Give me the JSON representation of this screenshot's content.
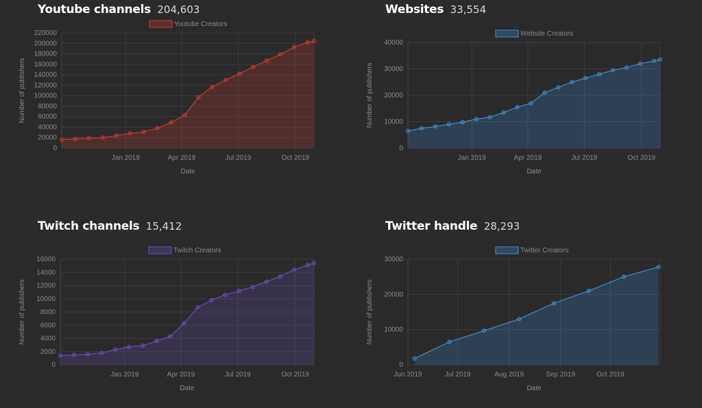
{
  "panels": [
    {
      "title": "Youtube channels",
      "count": "204,603",
      "chart_data": {
        "type": "area",
        "legend": "Youtube Creators",
        "legend_position": "top-center",
        "xlabel": "Date",
        "ylabel": "Number of publishers",
        "ylim": [
          0,
          220000
        ],
        "yticks": [
          0,
          20000,
          40000,
          60000,
          80000,
          100000,
          120000,
          140000,
          160000,
          180000,
          200000,
          220000
        ],
        "xlim": [
          "2018-09-20",
          "2019-10-31"
        ],
        "xticks": [
          {
            "date": "2019-01-01",
            "label": "Jan 2019"
          },
          {
            "date": "2019-04-01",
            "label": "Apr 2019"
          },
          {
            "date": "2019-07-01",
            "label": "Jul 2019"
          },
          {
            "date": "2019-10-01",
            "label": "Oct 2019"
          }
        ],
        "grid": true,
        "color": "#d0392b",
        "series": [
          {
            "x": [
              "2018-09-20",
              "2018-10-12",
              "2018-11-03",
              "2018-11-25",
              "2018-12-17",
              "2019-01-08",
              "2019-01-30",
              "2019-02-21",
              "2019-03-15",
              "2019-04-06",
              "2019-04-28",
              "2019-05-20",
              "2019-06-11",
              "2019-07-03",
              "2019-07-25",
              "2019-08-16",
              "2019-09-07",
              "2019-09-29",
              "2019-10-21",
              "2019-10-31"
            ],
            "y": [
              16000,
              17500,
              19000,
              20000,
              24000,
              28000,
              31000,
              38000,
              49000,
              63000,
              97000,
              117000,
              130000,
              142000,
              155000,
              167000,
              179000,
              193000,
              202000,
              204603
            ]
          }
        ]
      }
    },
    {
      "title": "Websites",
      "count": "33,554",
      "chart_data": {
        "type": "area",
        "legend": "Website Creators",
        "legend_position": "top-center",
        "xlabel": "Date",
        "ylabel": "Number of publishers",
        "ylim": [
          0,
          40000
        ],
        "yticks": [
          0,
          10000,
          20000,
          30000,
          40000
        ],
        "xlim": [
          "2018-09-20",
          "2019-10-31"
        ],
        "xticks": [
          {
            "date": "2019-01-01",
            "label": "Jan 2019"
          },
          {
            "date": "2019-04-01",
            "label": "Apr 2019"
          },
          {
            "date": "2019-07-01",
            "label": "Jul 2019"
          },
          {
            "date": "2019-10-01",
            "label": "Oct 2019"
          }
        ],
        "grid": true,
        "color": "#3a8fd4",
        "series": [
          {
            "x": [
              "2018-09-20",
              "2018-10-12",
              "2018-11-03",
              "2018-11-25",
              "2018-12-17",
              "2019-01-08",
              "2019-01-30",
              "2019-02-21",
              "2019-03-15",
              "2019-04-06",
              "2019-04-28",
              "2019-05-20",
              "2019-06-11",
              "2019-07-03",
              "2019-07-25",
              "2019-08-16",
              "2019-09-07",
              "2019-09-29",
              "2019-10-21",
              "2019-10-31"
            ],
            "y": [
              6500,
              7500,
              8200,
              9000,
              9800,
              11000,
              11700,
              13500,
              15500,
              17000,
              21000,
              23000,
              25000,
              26500,
              28000,
              29500,
              30500,
              32000,
              33000,
              33554
            ]
          }
        ]
      }
    },
    {
      "title": "Twitch channels",
      "count": "15,412",
      "chart_data": {
        "type": "area",
        "legend": "Twitch Creators",
        "legend_position": "top-center",
        "xlabel": "Date",
        "ylabel": "Number of publishers",
        "ylim": [
          0,
          16000
        ],
        "yticks": [
          0,
          2000,
          4000,
          6000,
          8000,
          10000,
          12000,
          14000,
          16000
        ],
        "xlim": [
          "2018-09-20",
          "2019-10-31"
        ],
        "xticks": [
          {
            "date": "2019-01-01",
            "label": "Jan 2019"
          },
          {
            "date": "2019-04-01",
            "label": "Apr 2019"
          },
          {
            "date": "2019-07-01",
            "label": "Jul 2019"
          },
          {
            "date": "2019-10-01",
            "label": "Oct 2019"
          }
        ],
        "grid": true,
        "color": "#6a4fb8",
        "series": [
          {
            "x": [
              "2018-09-20",
              "2018-10-12",
              "2018-11-03",
              "2018-11-25",
              "2018-12-17",
              "2019-01-08",
              "2019-01-30",
              "2019-02-21",
              "2019-03-15",
              "2019-04-06",
              "2019-04-28",
              "2019-05-20",
              "2019-06-11",
              "2019-07-03",
              "2019-07-25",
              "2019-08-16",
              "2019-09-07",
              "2019-09-29",
              "2019-10-21",
              "2019-10-31"
            ],
            "y": [
              1400,
              1500,
              1600,
              1800,
              2300,
              2700,
              2900,
              3600,
              4300,
              6300,
              8700,
              9800,
              10600,
              11200,
              11800,
              12600,
              13400,
              14400,
              15100,
              15412
            ]
          }
        ]
      }
    },
    {
      "title": "Twitter handle",
      "count": "28,293",
      "chart_data": {
        "type": "area",
        "legend": "Twitter Creators",
        "legend_position": "top-center",
        "xlabel": "Date",
        "ylabel": "Number of publishers",
        "ylim": [
          0,
          30000
        ],
        "yticks": [
          0,
          10000,
          20000,
          30000
        ],
        "xlim": [
          "2019-06-01",
          "2019-10-31"
        ],
        "xticks": [
          {
            "date": "2019-06-01",
            "label": "Jun 2019"
          },
          {
            "date": "2019-07-01",
            "label": "Jul 2019"
          },
          {
            "date": "2019-08-01",
            "label": "Aug 2019"
          },
          {
            "date": "2019-09-01",
            "label": "Sep 2019"
          },
          {
            "date": "2019-10-01",
            "label": "Oct 2019"
          }
        ],
        "grid": true,
        "color": "#3a8fd4",
        "series": [
          {
            "x": [
              "2019-06-05",
              "2019-06-26",
              "2019-07-17",
              "2019-08-07",
              "2019-08-28",
              "2019-09-18",
              "2019-10-09",
              "2019-10-30"
            ],
            "y": [
              1800,
              6500,
              9700,
              13000,
              17500,
              21000,
              25000,
              27800
            ]
          }
        ]
      }
    }
  ]
}
